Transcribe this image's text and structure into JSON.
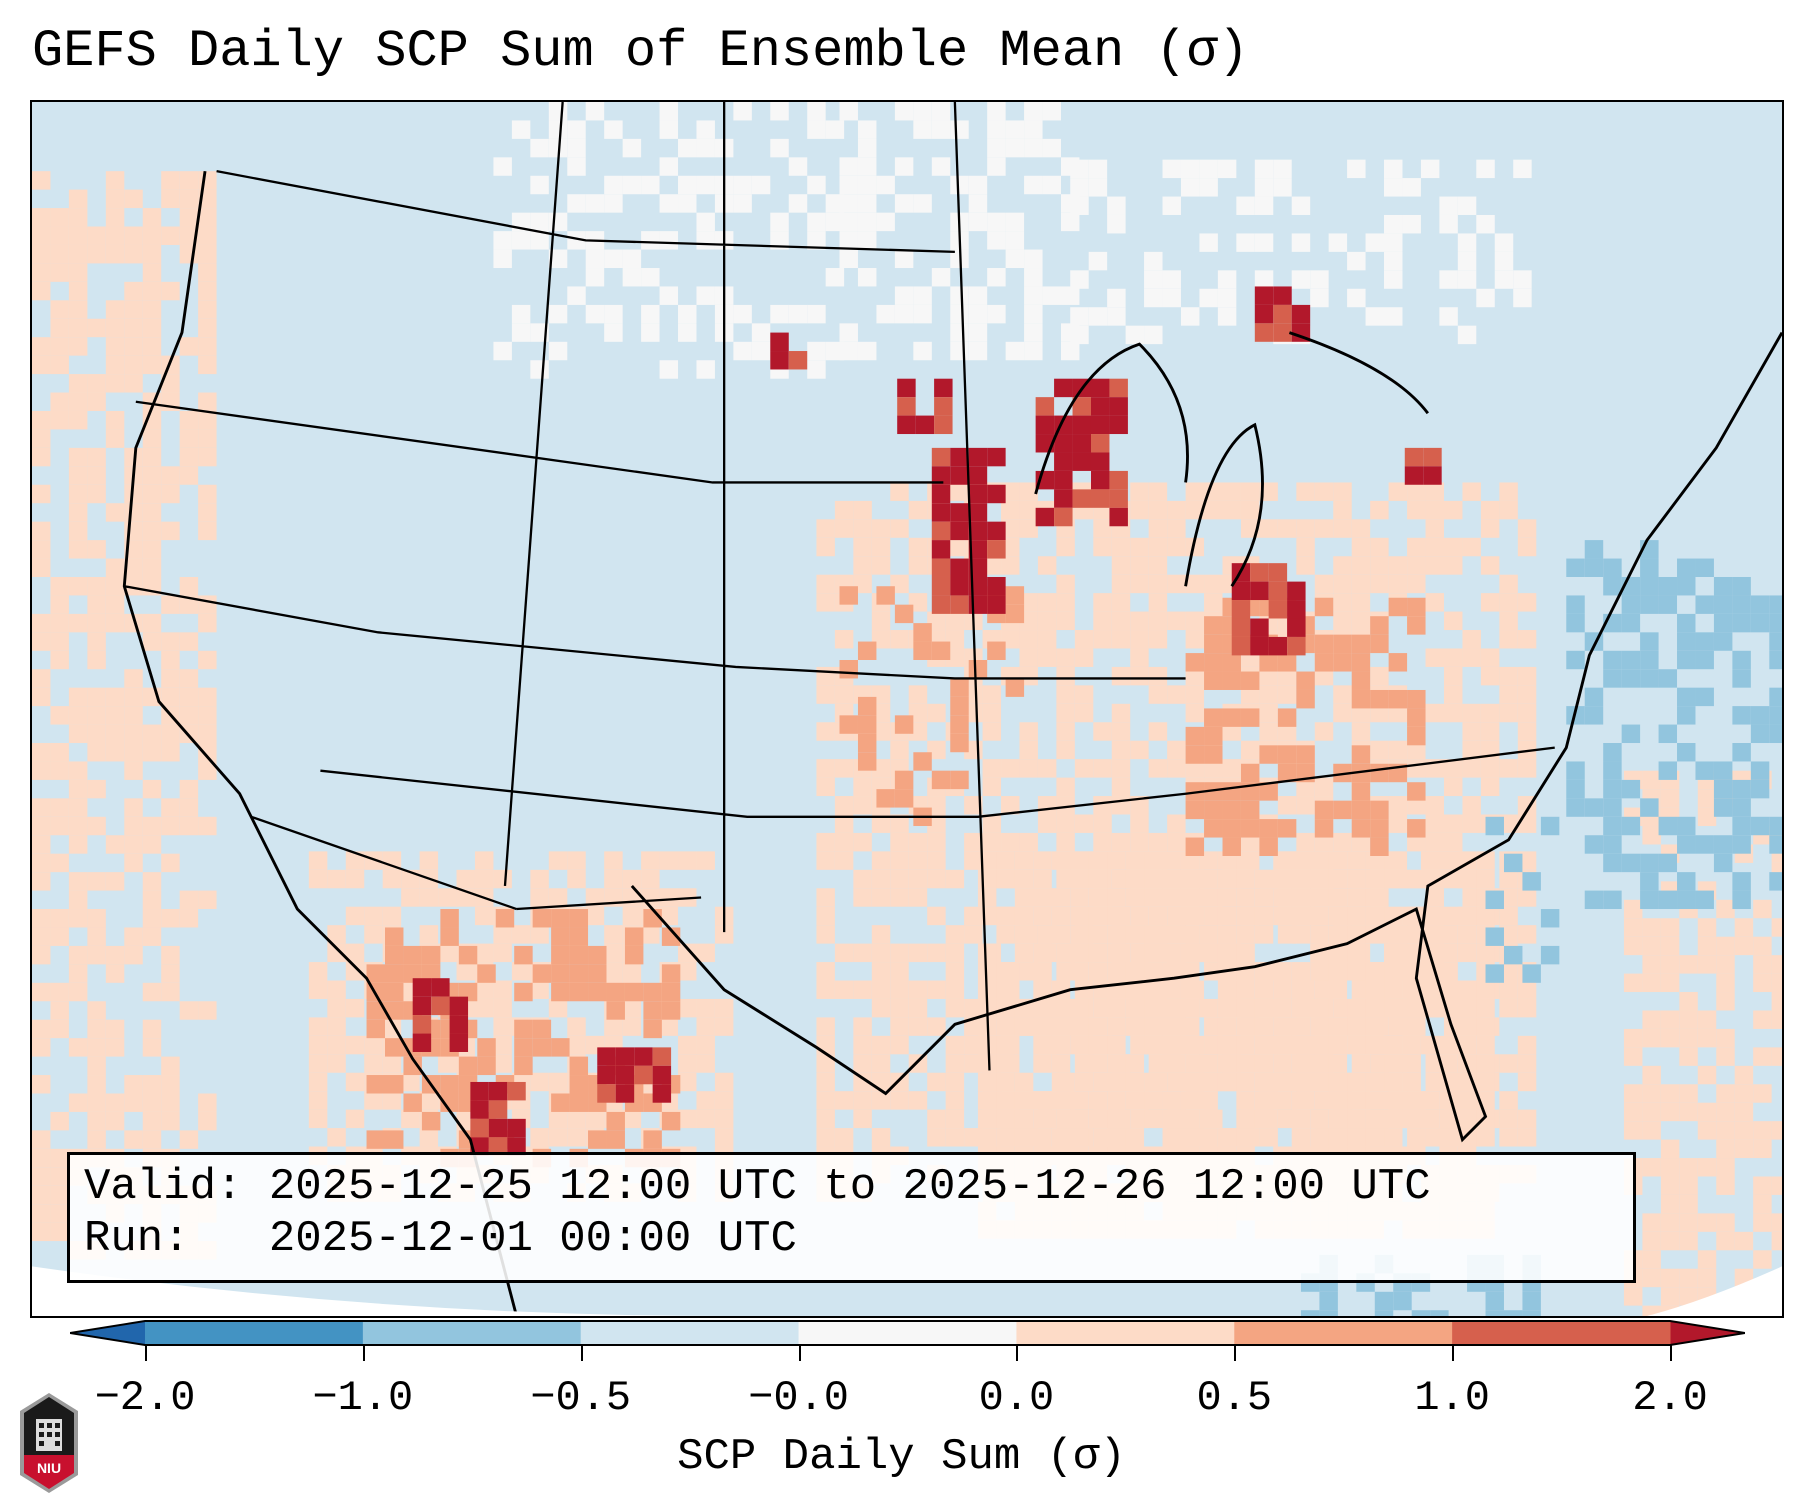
{
  "title": "GEFS Daily SCP Sum of Ensemble Mean (σ)",
  "info": {
    "valid": "Valid: 2025-12-25 12:00 UTC to 2025-12-26 12:00 UTC",
    "run": "Run:   2025-12-01 00:00 UTC"
  },
  "colorbar": {
    "label": "SCP Daily Sum (σ)",
    "ticks": [
      "−2.0",
      "−1.0",
      "−0.5",
      "−0.0",
      "0.0",
      "0.5",
      "1.0",
      "2.0"
    ],
    "colors": [
      "#4393c3",
      "#92c5de",
      "#d1e5f0",
      "#f7f7f7",
      "#fddbc7",
      "#f4a582",
      "#d6604d"
    ],
    "under_color": "#2166ac",
    "over_color": "#b2182b"
  },
  "logo": {
    "text": "NIU"
  }
}
